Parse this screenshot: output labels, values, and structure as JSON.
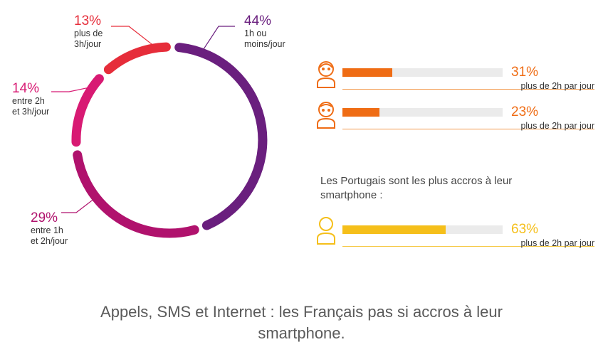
{
  "chart_data": [
    {
      "type": "pie",
      "style": "segmented-ring",
      "slices": [
        {
          "pct": 44,
          "pct_label": "44%",
          "label": [
            "1h ou",
            "moins/jour"
          ],
          "color": "#6a1f7e"
        },
        {
          "pct": 29,
          "pct_label": "29%",
          "label": [
            "entre 1h",
            "et 2h/jour"
          ],
          "color": "#b0126d"
        },
        {
          "pct": 14,
          "pct_label": "14%",
          "label": [
            "entre 2h",
            "et 3h/jour"
          ],
          "color": "#d81a73"
        },
        {
          "pct": 13,
          "pct_label": "13%",
          "label": [
            "plus de",
            "3h/jour"
          ],
          "color": "#e62d3a"
        }
      ]
    },
    {
      "type": "bar",
      "orientation": "horizontal",
      "unit": "%",
      "bars": [
        {
          "icon": "woman-icon",
          "value": 31,
          "value_label": "31%",
          "label": "plus de 2h par jour",
          "color": "#ef6c14",
          "rule_color": "#f39a4e"
        },
        {
          "icon": "man-icon",
          "value": 23,
          "value_label": "23%",
          "label": "plus de 2h par jour",
          "color": "#ef6c14",
          "rule_color": "#f39a4e"
        }
      ]
    },
    {
      "type": "bar",
      "orientation": "horizontal",
      "unit": "%",
      "note": [
        "Les Portugais sont les plus accros à leur",
        "smartphone :"
      ],
      "bars": [
        {
          "icon": "person-icon",
          "value": 63,
          "value_label": "63%",
          "label": "plus de 2h par jour",
          "color": "#f5bf1a",
          "rule_color": "#f5c842"
        }
      ]
    }
  ],
  "caption": [
    "Appels, SMS et Internet : les Français pas si accros à leur",
    "smartphone."
  ]
}
